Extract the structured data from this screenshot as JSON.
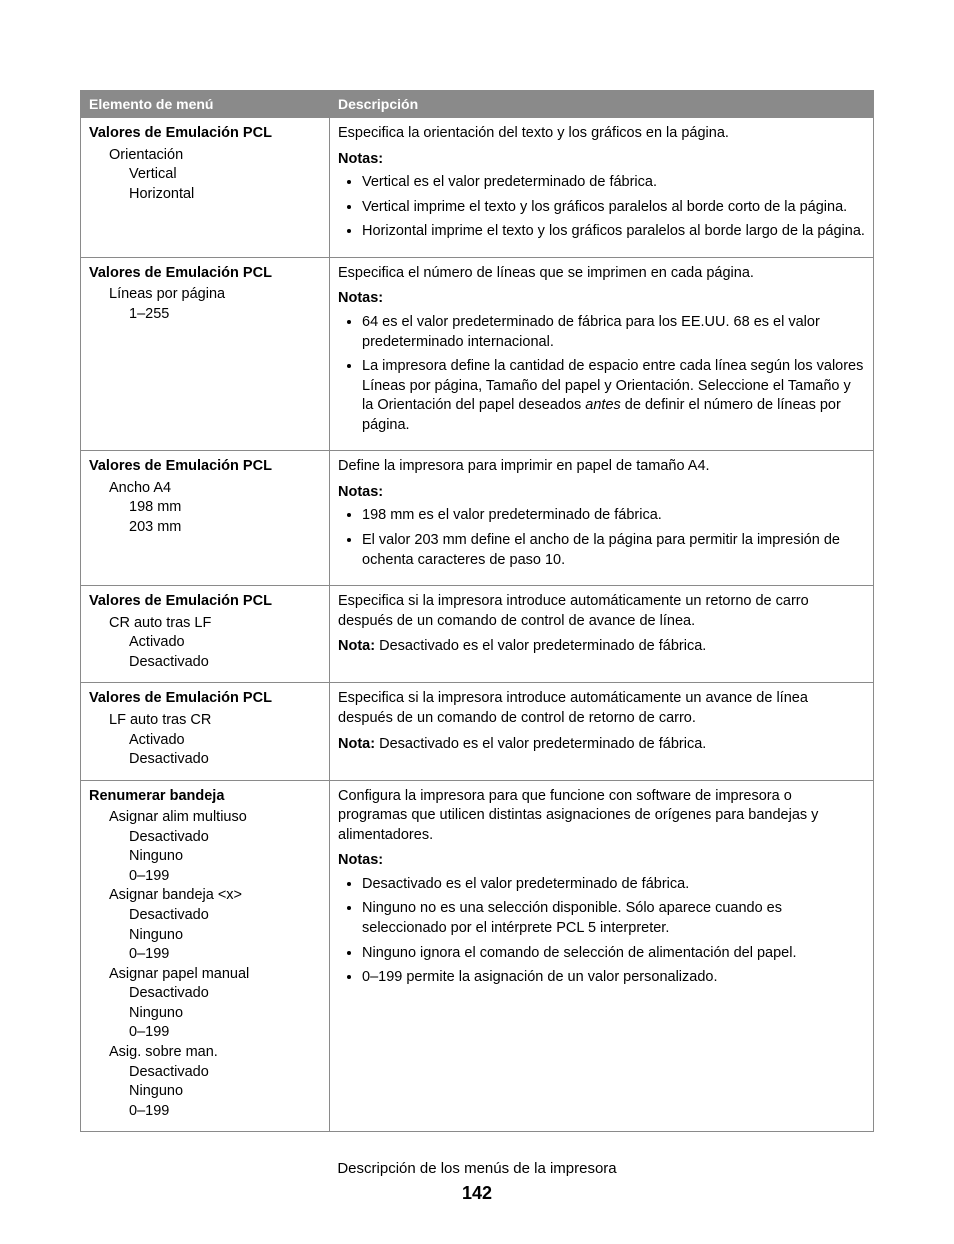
{
  "table": {
    "header": {
      "menu": "Elemento de menú",
      "desc": "Descripción"
    },
    "rows": [
      {
        "menu": {
          "title": "Valores de Emulación PCL",
          "sub1": [
            "Orientación"
          ],
          "sub2": [
            "Vertical",
            "Horizontal"
          ]
        },
        "desc": {
          "main": "Especifica la orientación del texto y los gráficos en la página.",
          "notasLabel": "Notas:",
          "bullets": [
            "Vertical es el valor predeterminado de fábrica.",
            "Vertical imprime el texto y los gráficos paralelos al borde corto de la página.",
            "Horizontal imprime el texto y los gráficos paralelos al borde largo de la página."
          ]
        }
      },
      {
        "menu": {
          "title": "Valores de Emulación PCL",
          "sub1": [
            "Líneas por página"
          ],
          "sub2": [
            "1–255"
          ]
        },
        "desc": {
          "main": "Especifica el número de líneas que se imprimen en cada página.",
          "notasLabel": "Notas:",
          "bullets": [
            "64 es el valor predeterminado de fábrica para los EE.UU. 68 es el valor predeterminado internacional.",
            "La impresora define la cantidad de espacio entre cada línea según los valores Líneas por página, Tamaño del papel y Orientación. Seleccione el Tamaño y la Orientación del papel deseados antes de definir el número de líneas por página."
          ],
          "italicWord": "antes"
        }
      },
      {
        "menu": {
          "title": "Valores de Emulación PCL",
          "sub1": [
            "Ancho A4"
          ],
          "sub2": [
            "198 mm",
            "203 mm"
          ]
        },
        "desc": {
          "main": "Define la impresora para imprimir en papel de tamaño A4.",
          "notasLabel": "Notas:",
          "bullets": [
            "198 mm es el valor predeterminado de fábrica.",
            "El valor 203 mm define el ancho de la página para permitir la impresión de ochenta caracteres de paso 10."
          ]
        }
      },
      {
        "menu": {
          "title": "Valores de Emulación PCL",
          "sub1": [
            "CR auto tras LF"
          ],
          "sub2": [
            "Activado",
            "Desactivado"
          ]
        },
        "desc": {
          "main": "Especifica si la impresora introduce automáticamente un retorno de carro después de un comando de control de avance de línea.",
          "notaLabel": "Nota:",
          "notaText": "Desactivado es el valor predeterminado de fábrica."
        }
      },
      {
        "menu": {
          "title": "Valores de Emulación PCL",
          "sub1": [
            "LF auto tras CR"
          ],
          "sub2": [
            "Activado",
            "Desactivado"
          ]
        },
        "desc": {
          "main": "Especifica si la impresora introduce automáticamente un avance de línea después de un comando de control de retorno de carro.",
          "notaLabel": "Nota:",
          "notaText": "Desactivado es el valor predeterminado de fábrica."
        }
      },
      {
        "menu": {
          "title": "Renumerar bandeja",
          "groups": [
            {
              "g": "Asignar alim multiuso",
              "opts": [
                "Desactivado",
                "Ninguno",
                "0–199"
              ]
            },
            {
              "g": "Asignar bandeja <x>",
              "opts": [
                "Desactivado",
                "Ninguno",
                "0–199"
              ]
            },
            {
              "g": "Asignar papel manual",
              "opts": [
                "Desactivado",
                "Ninguno",
                "0–199"
              ]
            },
            {
              "g": "Asig. sobre man.",
              "opts": [
                "Desactivado",
                "Ninguno",
                "0–199"
              ]
            }
          ]
        },
        "desc": {
          "main": "Configura la impresora para que funcione con software de impresora o programas que utilicen distintas asignaciones de orígenes para bandejas y alimentadores.",
          "notasLabel": "Notas:",
          "bullets": [
            "Desactivado es el valor predeterminado de fábrica.",
            "Ninguno no es una selección disponible. Sólo aparece cuando es seleccionado por el intérprete PCL 5 interpreter.",
            "Ninguno ignora el comando de selección de alimentación del papel.",
            "0–199 permite la asignación de un valor personalizado."
          ]
        }
      }
    ]
  },
  "footer": {
    "line": "Descripción de los menús de la impresora",
    "page": "142"
  }
}
